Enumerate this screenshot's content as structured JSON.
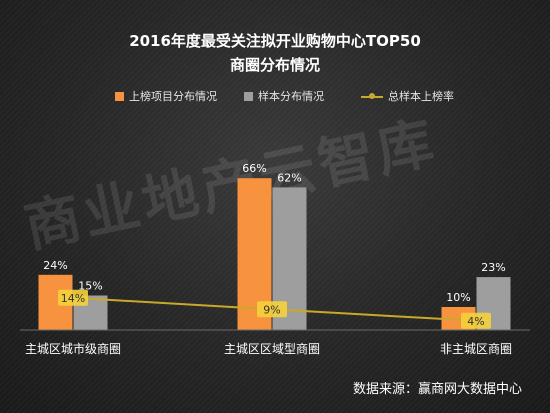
{
  "title_line1": "2016年度最受关注拟开业购物中心TOP50",
  "title_line2": "商圈分布情况",
  "source_text": "数据来源：赢商网大数据中心",
  "watermark": "商业地产云智库",
  "colors": {
    "listed": "#f7923e",
    "sample": "#9e9e9e",
    "rate_line": "#c9a92a",
    "rate_label_bg": "#f5d23b"
  },
  "chart_data": {
    "type": "bar",
    "title": "2016年度最受关注拟开业购物中心TOP50 商圈分布情况",
    "categories": [
      "主城区城市级商圈",
      "主城区区域型商圈",
      "非主城区商圈"
    ],
    "series": [
      {
        "name": "上榜项目分布情况",
        "type": "bar",
        "values": [
          24,
          66,
          10
        ],
        "labels": [
          "24%",
          "66%",
          "10%"
        ]
      },
      {
        "name": "样本分布情况",
        "type": "bar",
        "values": [
          15,
          62,
          23
        ],
        "labels": [
          "15%",
          "62%",
          "23%"
        ]
      },
      {
        "name": "总样本上榜率",
        "type": "line",
        "values": [
          14,
          9,
          4
        ],
        "labels": [
          "14%",
          "9%",
          "4%"
        ]
      }
    ],
    "ylim": [
      0,
      100
    ],
    "legend_position": "top",
    "grid": false
  }
}
